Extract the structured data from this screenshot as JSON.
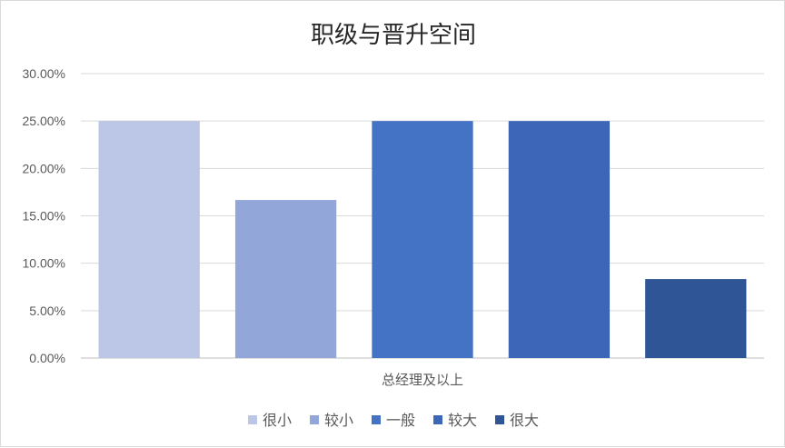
{
  "chart_data": {
    "type": "bar",
    "title": "职级与晋升空间",
    "categories": [
      "总经理及以上"
    ],
    "series": [
      {
        "name": "很小",
        "values": [
          25.0
        ],
        "color": "#bcc6e6"
      },
      {
        "name": "较小",
        "values": [
          16.67
        ],
        "color": "#93a6d9"
      },
      {
        "name": "一般",
        "values": [
          25.0
        ],
        "color": "#4472c4"
      },
      {
        "name": "较大",
        "values": [
          25.0
        ],
        "color": "#3e66b8"
      },
      {
        "name": "很大",
        "values": [
          8.33
        ],
        "color": "#2f5597"
      }
    ],
    "ylim": [
      0,
      30
    ],
    "yticks": [
      "0.00%",
      "5.00%",
      "10.00%",
      "15.00%",
      "20.00%",
      "25.00%",
      "30.00%"
    ],
    "grid": true,
    "legend": "bottom",
    "xlabel": "",
    "ylabel": ""
  }
}
